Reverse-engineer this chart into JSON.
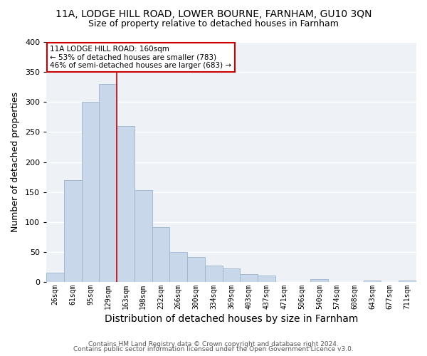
{
  "title1": "11A, LODGE HILL ROAD, LOWER BOURNE, FARNHAM, GU10 3QN",
  "title2": "Size of property relative to detached houses in Farnham",
  "xlabel": "Distribution of detached houses by size in Farnham",
  "ylabel": "Number of detached properties",
  "footer1": "Contains HM Land Registry data © Crown copyright and database right 2024.",
  "footer2": "Contains public sector information licensed under the Open Government Licence v3.0.",
  "categories": [
    "26sqm",
    "61sqm",
    "95sqm",
    "129sqm",
    "163sqm",
    "198sqm",
    "232sqm",
    "266sqm",
    "300sqm",
    "334sqm",
    "369sqm",
    "403sqm",
    "437sqm",
    "471sqm",
    "506sqm",
    "540sqm",
    "574sqm",
    "608sqm",
    "643sqm",
    "677sqm",
    "711sqm"
  ],
  "values": [
    15,
    170,
    300,
    330,
    260,
    153,
    91,
    50,
    42,
    27,
    23,
    13,
    11,
    0,
    0,
    5,
    0,
    0,
    3,
    0,
    3
  ],
  "bar_color": "#c8d8ea",
  "bar_edge_color": "#9ab4cc",
  "vline_color": "#cc0000",
  "annotation_title": "11A LODGE HILL ROAD: 160sqm",
  "annotation_line1": "← 53% of detached houses are smaller (783)",
  "annotation_line2": "46% of semi-detached houses are larger (683) →",
  "annotation_box_color": "white",
  "annotation_box_edge": "#cc0000",
  "ylim": [
    0,
    400
  ],
  "yticks": [
    0,
    50,
    100,
    150,
    200,
    250,
    300,
    350,
    400
  ],
  "plot_bg_color": "#eef2f7",
  "fig_bg_color": "white",
  "grid_color": "white",
  "title1_fontsize": 10,
  "title2_fontsize": 9,
  "xlabel_fontsize": 10,
  "ylabel_fontsize": 9,
  "footer_fontsize": 6.5
}
